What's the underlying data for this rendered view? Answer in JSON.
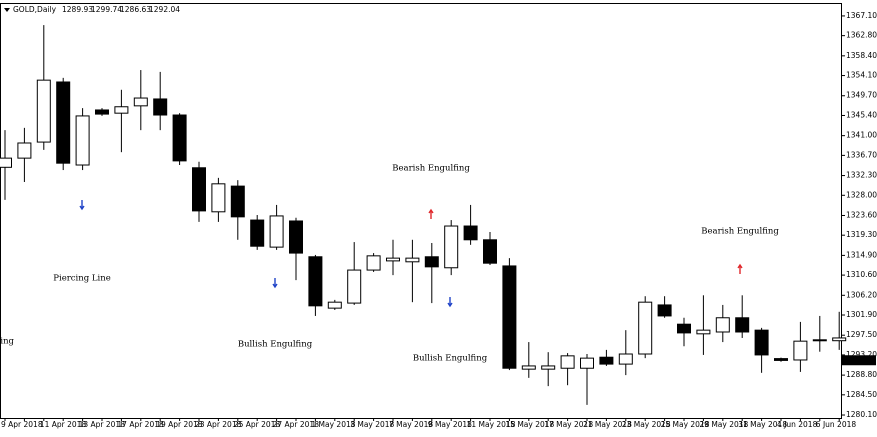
{
  "header": {
    "symbol": "GOLD,Daily",
    "open": 1289.93,
    "high": 1299.74,
    "low": 1286.63,
    "close": 1292.04
  },
  "chart_data": {
    "type": "candlestick",
    "categories": [
      "9 Apr 2018",
      null,
      "11 Apr 2018",
      null,
      "13 Apr 2018",
      null,
      "17 Apr 2018",
      null,
      "19 Apr 2018",
      null,
      "23 Apr 2018",
      null,
      "25 Apr 2018",
      null,
      "27 Apr 2018",
      null,
      "1 May 2018",
      null,
      "3 May 2018",
      null,
      "7 May 2018",
      null,
      "9 May 2018",
      null,
      "11 May 2018",
      null,
      "15 May 2018",
      null,
      "17 May 2018",
      null,
      "21 May 2018",
      null,
      "23 May 2018",
      null,
      "25 May 2018",
      null,
      "29 May 2018",
      null,
      "31 May 2018",
      null,
      "4 Jun 2018",
      null,
      "6 Jun 2018",
      null
    ],
    "open": [
      1334.1,
      1336.1,
      1339.6,
      1352.7,
      1334.6,
      1346.6,
      1345.9,
      1347.5,
      1349.0,
      1345.5,
      1334.0,
      1324.4,
      1330.0,
      1322.6,
      1316.7,
      1322.4,
      1314.6,
      1303.4,
      1304.5,
      1311.7,
      1313.7,
      1313.5,
      1314.6,
      1312.2,
      1321.3,
      1318.3,
      1312.6,
      1290.1,
      1290.1,
      1290.3,
      1290.3,
      1292.7,
      1291.2,
      1293.4,
      1304.1,
      1299.9,
      1297.8,
      1298.2,
      1301.3,
      1298.6,
      1292.4,
      1292.1,
      1296.3,
      1296.3
    ],
    "high": [
      1342.2,
      1342.7,
      1365.1,
      1353.6,
      1347.0,
      1347.0,
      1351.0,
      1355.3,
      1354.9,
      1345.9,
      1335.3,
      1331.8,
      1331.3,
      1323.7,
      1325.9,
      1323.1,
      1315.0,
      1305.2,
      1317.8,
      1315.4,
      1318.3,
      1318.3,
      1317.6,
      1322.6,
      1325.9,
      1320.0,
      1314.3,
      1296.0,
      1293.8,
      1293.6,
      1293.4,
      1294.3,
      1298.6,
      1306.0,
      1306.0,
      1301.3,
      1306.2,
      1304.1,
      1306.2,
      1299.1,
      1292.6,
      1300.4,
      1301.7,
      1302.6
    ],
    "low": [
      1327.0,
      1330.9,
      1337.9,
      1333.5,
      1333.5,
      1345.3,
      1337.4,
      1342.2,
      1342.2,
      1334.6,
      1322.2,
      1322.2,
      1318.3,
      1316.1,
      1316.1,
      1309.5,
      1301.7,
      1303.0,
      1304.1,
      1311.3,
      1310.6,
      1304.7,
      1304.5,
      1310.6,
      1317.2,
      1312.8,
      1289.9,
      1288.2,
      1286.4,
      1286.6,
      1282.3,
      1290.8,
      1288.8,
      1292.5,
      1301.3,
      1295.1,
      1293.2,
      1296.0,
      1296.9,
      1289.3,
      1291.7,
      1289.5,
      1293.9,
      1294.3
    ],
    "close": [
      1336.1,
      1339.4,
      1353.1,
      1335.0,
      1345.3,
      1345.7,
      1347.3,
      1349.2,
      1345.5,
      1335.5,
      1324.6,
      1330.5,
      1323.3,
      1316.9,
      1323.5,
      1315.4,
      1303.9,
      1304.7,
      1311.7,
      1314.8,
      1314.3,
      1314.3,
      1312.4,
      1321.3,
      1318.3,
      1313.2,
      1290.3,
      1290.8,
      1290.8,
      1293.0,
      1292.5,
      1291.2,
      1293.4,
      1304.7,
      1301.7,
      1298.0,
      1298.6,
      1301.3,
      1298.2,
      1293.2,
      1292.0,
      1296.2,
      1296.5,
      1296.9
    ],
    "ylim": [
      1279.45,
      1369.7
    ],
    "yticks": [
      {
        "value": 1367.1,
        "label": "1367.10"
      },
      {
        "value": 1362.8,
        "label": "1362.80"
      },
      {
        "value": 1358.4,
        "label": "1358.40"
      },
      {
        "value": 1354.1,
        "label": "1354.10"
      },
      {
        "value": 1349.7,
        "label": "1349.70"
      },
      {
        "value": 1345.4,
        "label": "1345.40"
      },
      {
        "value": 1341,
        "label": "1341.00"
      },
      {
        "value": 1336.7,
        "label": "1336.70"
      },
      {
        "value": 1332.3,
        "label": "1332.30"
      },
      {
        "value": 1328,
        "label": "1328.00"
      },
      {
        "value": 1323.6,
        "label": "1323.60"
      },
      {
        "value": 1319.3,
        "label": "1319.30"
      },
      {
        "value": 1314.9,
        "label": "1314.90"
      },
      {
        "value": 1310.6,
        "label": "1310.60"
      },
      {
        "value": 1306.2,
        "label": "1306.20"
      },
      {
        "value": 1301.9,
        "label": "1301.90"
      },
      {
        "value": 1297.5,
        "label": "1297.50"
      },
      {
        "value": 1293.2,
        "label": "1293.20"
      },
      {
        "value": 1288.8,
        "label": "1288.80"
      },
      {
        "value": 1284.5,
        "label": "1284.50"
      },
      {
        "value": 1280.1,
        "label": "1280.10"
      }
    ],
    "up_color": "#ffffff",
    "down_color": "#000000",
    "outline_color": "#000000",
    "annotations": [
      {
        "text": "ing",
        "color": "#2144c8"
      },
      {
        "text": "Piercing Line",
        "color": "#2144c8"
      },
      {
        "text": "Bullish Engulfing",
        "color": "#2144c8"
      },
      {
        "text": "Bullish Engulfing",
        "color": "#2144c8"
      },
      {
        "text": "Bearish Engulfing",
        "color": "#e0282c"
      },
      {
        "text": "Bearish Engulfing",
        "color": "#e0282c"
      }
    ]
  }
}
